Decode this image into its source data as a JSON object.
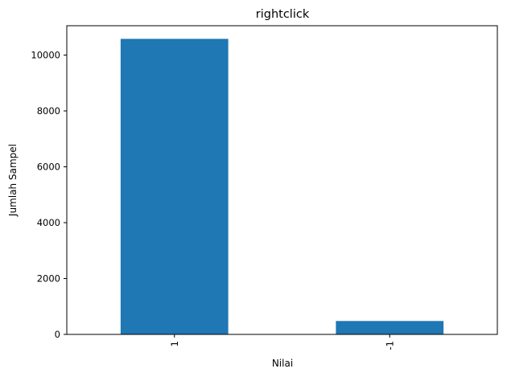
{
  "chart_data": {
    "type": "bar",
    "title": "rightclick",
    "xlabel": "Nilai",
    "ylabel": "Jumlah Sampel",
    "categories": [
      "1",
      "-1"
    ],
    "values": [
      10580,
      480
    ],
    "ylim": [
      0,
      11050
    ],
    "yticks": [
      0,
      2000,
      4000,
      6000,
      8000,
      10000
    ],
    "bar_color": "#1f77b4",
    "grid": false,
    "legend": "none"
  }
}
